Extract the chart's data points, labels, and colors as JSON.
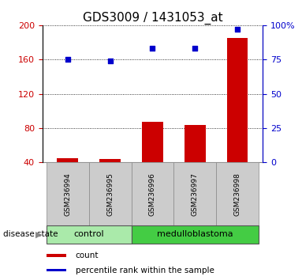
{
  "title": "GDS3009 / 1431053_at",
  "samples": [
    "GSM236994",
    "GSM236995",
    "GSM236996",
    "GSM236997",
    "GSM236998"
  ],
  "counts": [
    45,
    44,
    87,
    84,
    185
  ],
  "percentiles": [
    75,
    74,
    83,
    83,
    97
  ],
  "left_ylim": [
    40,
    200
  ],
  "right_ylim": [
    0,
    100
  ],
  "left_yticks": [
    40,
    80,
    120,
    160,
    200
  ],
  "right_yticks": [
    0,
    25,
    50,
    75,
    100
  ],
  "right_yticklabels": [
    "0",
    "25",
    "50",
    "75",
    "100%"
  ],
  "left_color": "#cc0000",
  "right_color": "#0000cc",
  "bar_color": "#cc0000",
  "dot_color": "#0000cc",
  "groups": [
    {
      "label": "control",
      "indices": [
        0,
        1
      ],
      "bg": "#aaeaaa"
    },
    {
      "label": "medulloblastoma",
      "indices": [
        2,
        3,
        4
      ],
      "bg": "#44cc44"
    }
  ],
  "disease_state_label": "disease state",
  "legend_count": "count",
  "legend_percentile": "percentile rank within the sample",
  "gridline_color": "#000000",
  "sample_bg": "#cccccc",
  "title_fontsize": 11,
  "axis_fontsize": 8,
  "sample_fontsize": 6.5,
  "group_fontsize": 8,
  "legend_fontsize": 7.5
}
